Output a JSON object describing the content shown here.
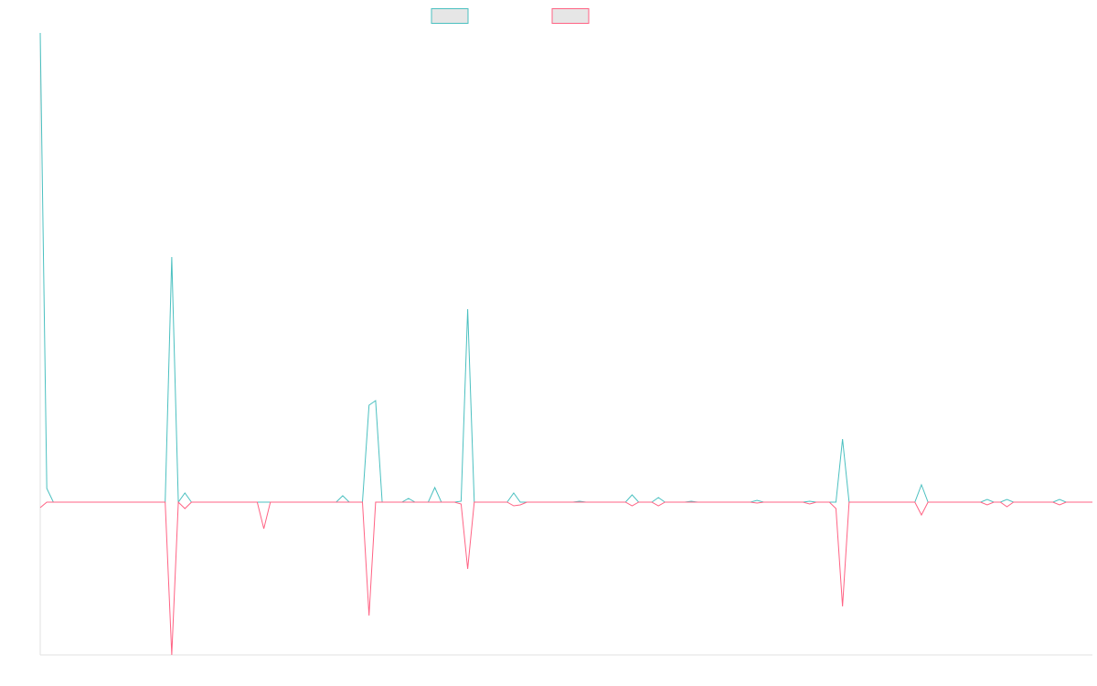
{
  "chart_data": {
    "type": "line",
    "ylim": [
      -167,
      513
    ],
    "series": [
      {
        "color": "#4bc0c0",
        "values": [
          513,
          15,
          0,
          0,
          0,
          0,
          0,
          0,
          0,
          0,
          0,
          0,
          0,
          0,
          0,
          0,
          0,
          0,
          0,
          0,
          268,
          0,
          10,
          0,
          0,
          0,
          0,
          0,
          0,
          0,
          0,
          0,
          0,
          0,
          0,
          0,
          0,
          0,
          0,
          0,
          0,
          0,
          0,
          0,
          0,
          0,
          7,
          0,
          0,
          0,
          106,
          111,
          0,
          0,
          0,
          0,
          4,
          0,
          0,
          0,
          16,
          0,
          0,
          0,
          1,
          211,
          0,
          0,
          0,
          0,
          0,
          0,
          10,
          0,
          0,
          0,
          0,
          0,
          0,
          0,
          0,
          0,
          1,
          0,
          0,
          0,
          0,
          0,
          0,
          0,
          8,
          0,
          0,
          0,
          5,
          0,
          0,
          0,
          0,
          1,
          0,
          0,
          0,
          0,
          0,
          0,
          0,
          0,
          0,
          2,
          0,
          0,
          0,
          0,
          0,
          0,
          0,
          1,
          0,
          0,
          0,
          0,
          69,
          0,
          0,
          0,
          0,
          0,
          0,
          0,
          0,
          0,
          0,
          0,
          19,
          0,
          0,
          0,
          0,
          0,
          0,
          0,
          0,
          0,
          3,
          0,
          0,
          3,
          0,
          0,
          0,
          0,
          0,
          0,
          0,
          3,
          0,
          0,
          0,
          0,
          0
        ]
      },
      {
        "color": "#ff6384",
        "values": [
          -6,
          0,
          0,
          0,
          0,
          0,
          0,
          0,
          0,
          0,
          0,
          0,
          0,
          0,
          0,
          0,
          0,
          0,
          0,
          0,
          -167,
          0,
          -7,
          0,
          0,
          0,
          0,
          0,
          0,
          0,
          0,
          0,
          0,
          0,
          -29,
          0,
          0,
          0,
          0,
          0,
          0,
          0,
          0,
          0,
          0,
          0,
          0,
          0,
          0,
          0,
          -124,
          0,
          0,
          0,
          0,
          0,
          0,
          0,
          0,
          0,
          0,
          0,
          0,
          0,
          -2,
          -73,
          0,
          0,
          0,
          0,
          0,
          0,
          -4,
          -3,
          0,
          0,
          0,
          0,
          0,
          0,
          0,
          0,
          0,
          0,
          0,
          0,
          0,
          0,
          0,
          0,
          -4,
          0,
          0,
          0,
          -4,
          0,
          0,
          0,
          0,
          0,
          0,
          0,
          0,
          0,
          0,
          0,
          0,
          0,
          0,
          -1,
          0,
          0,
          0,
          0,
          0,
          0,
          0,
          -2,
          0,
          0,
          0,
          -7,
          -114,
          0,
          0,
          0,
          0,
          0,
          0,
          0,
          0,
          0,
          0,
          0,
          -14,
          0,
          0,
          0,
          0,
          0,
          0,
          0,
          0,
          0,
          -3,
          0,
          0,
          -5,
          0,
          0,
          0,
          0,
          0,
          0,
          0,
          -3,
          0,
          0,
          0,
          0,
          0
        ]
      }
    ],
    "legend": "top"
  }
}
